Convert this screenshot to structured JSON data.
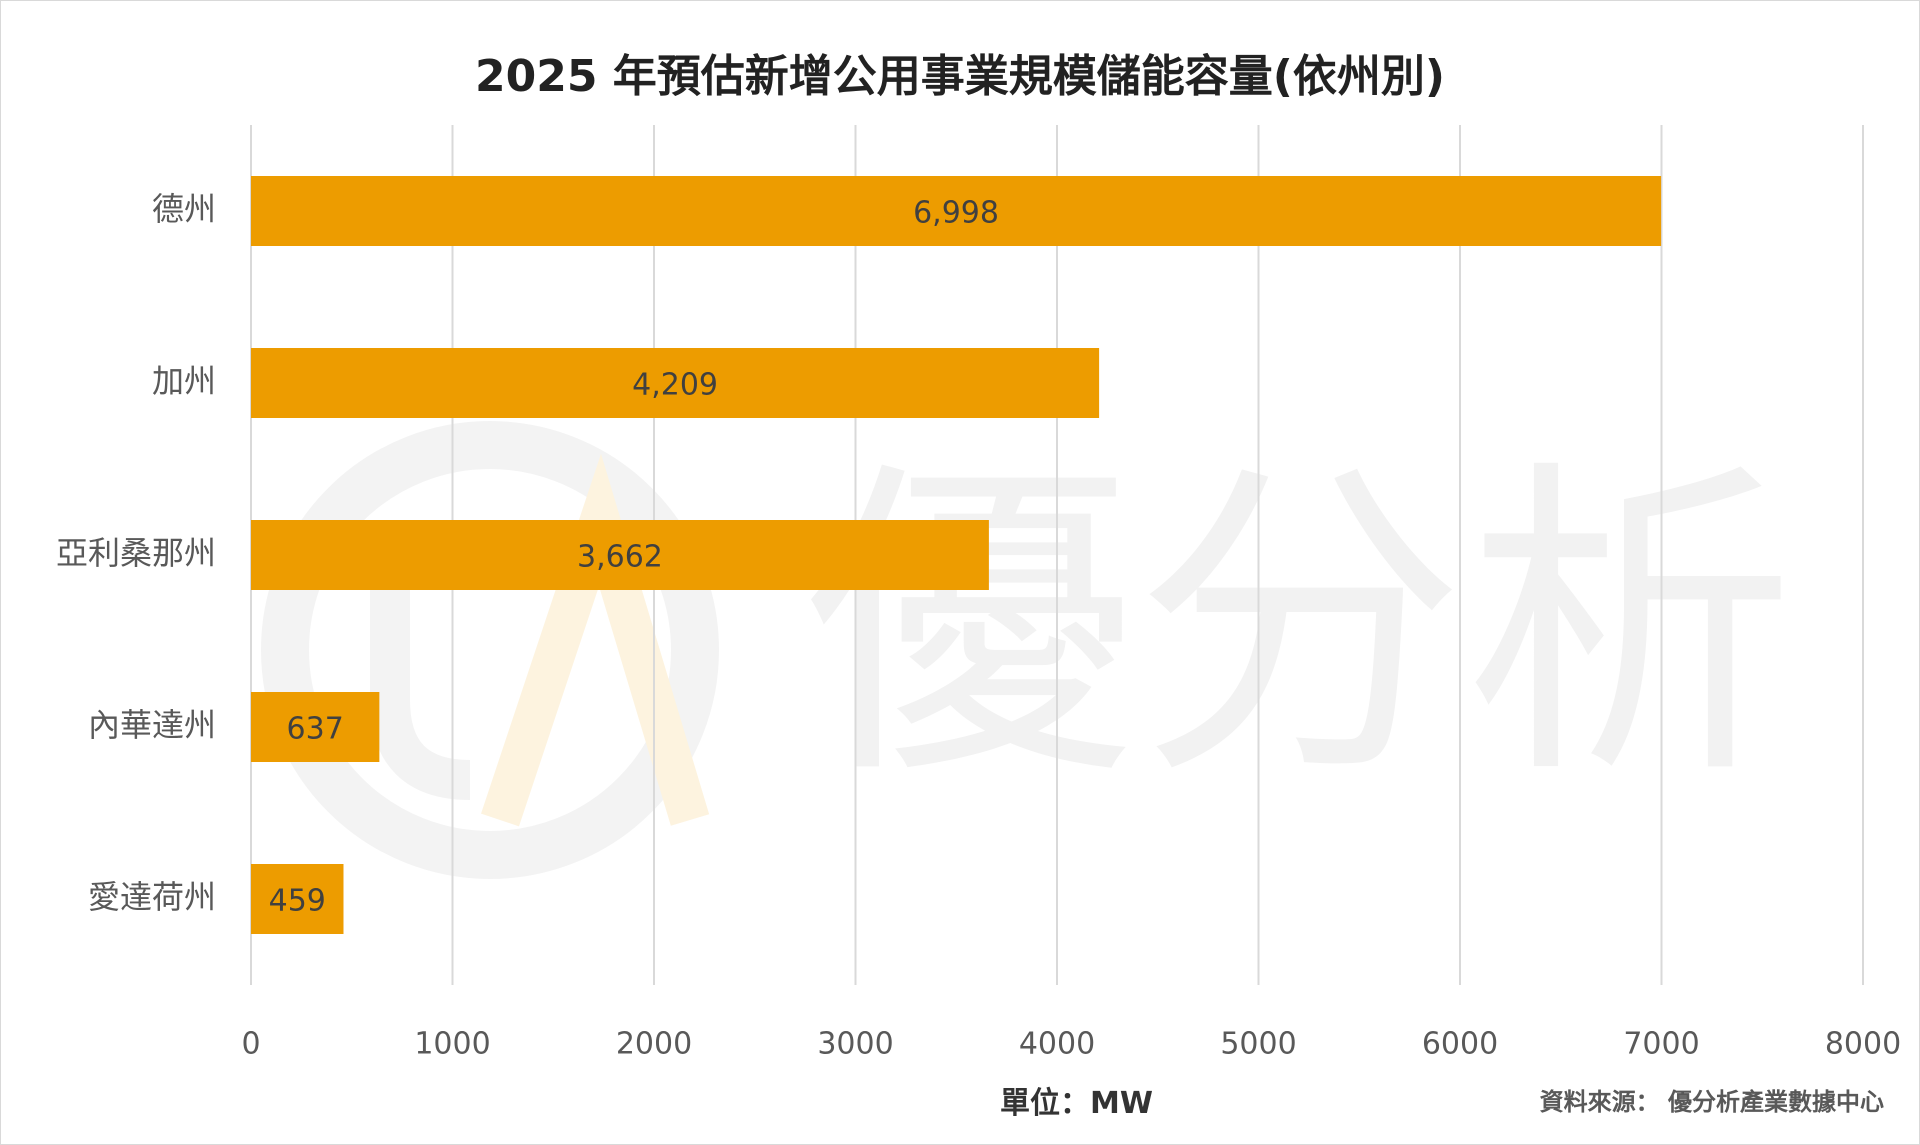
{
  "chart_data": {
    "type": "bar",
    "orientation": "horizontal",
    "title": "2025 年預估新增公用事業規模儲能容量(依州別)",
    "categories": [
      "德州",
      "加州",
      "亞利桑那州",
      "內華達州",
      "愛達荷州"
    ],
    "values": [
      6998,
      4209,
      3662,
      637,
      459
    ],
    "data_labels": [
      "6,998",
      "4,209",
      "3,662",
      "637",
      "459"
    ],
    "xlim": [
      0,
      8000
    ],
    "x_ticks": [
      "0",
      "1000",
      "2000",
      "3000",
      "4000",
      "5000",
      "6000",
      "7000",
      "8000"
    ],
    "bar_color": "#ED9C00",
    "grid": true,
    "unit_label": "單位：MW",
    "source": "資料來源： 優分析產業數據中心"
  },
  "watermark": {
    "text": "優分析",
    "color": "#f2f2f2"
  }
}
